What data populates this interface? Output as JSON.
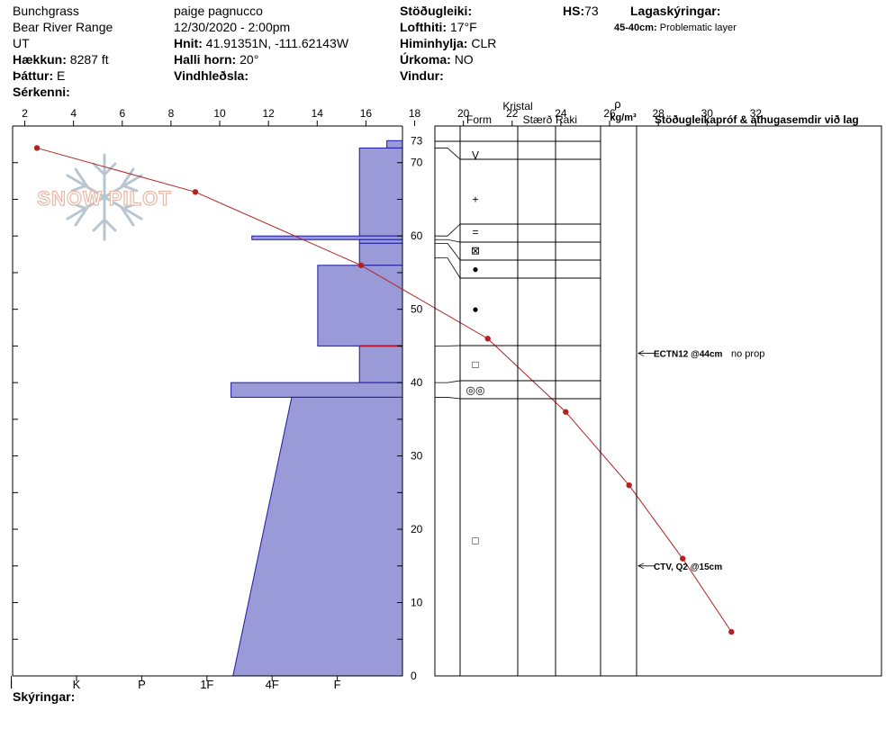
{
  "header": {
    "location": "Bunchgrass",
    "range": "Bear River Range",
    "state": "UT",
    "elevation_label": "Hækkun:",
    "elevation_value": "8287 ft",
    "aspect_label": "Þáttur:",
    "aspect_value": "E",
    "features_label": "Sérkenni:",
    "observer": "paige pagnucco",
    "datetime": "12/30/2020 - 2:00pm",
    "coords_label": "Hnit:",
    "coords_value": "41.91351N, -111.62143W",
    "slope_label": "Halli horn:",
    "slope_value": "20°",
    "wind_loading_label": "Vindhleðsla:",
    "stability_label": "Stöðugleiki:",
    "air_temp_label": "Lofthiti:",
    "air_temp_value": "17°F",
    "sky_label": "Himinhylja:",
    "sky_value": "CLR",
    "precip_label": "Úrkoma:",
    "precip_value": "NO",
    "wind_label": "Vindur:",
    "hs_label": "HS:",
    "hs_value": "73",
    "layer_notes_label": "Lagaskýringar:",
    "layer_note_range": "45-40cm:",
    "layer_note_text": "Problematic layer"
  },
  "watermark": "SNOW PILOT",
  "footer": {
    "notes_label": "Skýringar:"
  },
  "table_headers": {
    "kristal": "Kristal",
    "form": "Form",
    "size": "Stærð",
    "moisture": "Raki",
    "rho": "ρ",
    "density_unit": "kg/m³",
    "tests": "Stöðugleikapróf & athugasemdir við lag"
  },
  "colors": {
    "hardness_fill": "#9a9ad8",
    "hardness_edge": "#1a1aa0",
    "temp_line": "#b22222"
  },
  "chart_data": {
    "type": "snow-profile",
    "depth_range_cm": [
      0,
      75
    ],
    "depth_ticks": [
      0,
      10,
      20,
      30,
      40,
      50,
      60,
      70
    ],
    "hs_cm": 73,
    "temperature_axis_values": [
      2,
      4,
      6,
      8,
      10,
      12,
      14,
      16,
      18,
      20,
      22,
      24,
      26,
      28,
      30,
      32
    ],
    "hardness_scale": [
      "I",
      "K",
      "P",
      "1F",
      "4F",
      "F"
    ],
    "temperature_profile": [
      {
        "depth": 72,
        "temp": 2.5
      },
      {
        "depth": 66,
        "temp": 9.0
      },
      {
        "depth": 56,
        "temp": 15.8
      },
      {
        "depth": 46,
        "temp": 21.0
      },
      {
        "depth": 36,
        "temp": 24.2
      },
      {
        "depth": 26,
        "temp": 26.8
      },
      {
        "depth": 16,
        "temp": 29.0
      },
      {
        "depth": 6,
        "temp": 31.0
      }
    ],
    "hardness_layers": [
      {
        "top": 73,
        "bottom": 72,
        "hardness": 0.24
      },
      {
        "top": 72,
        "bottom": 60,
        "hardness": 0.66
      },
      {
        "top": 60,
        "bottom": 59.5,
        "hardness": 2.31
      },
      {
        "top": 59.5,
        "bottom": 59,
        "hardness": 0.66
      },
      {
        "top": 59,
        "bottom": 56,
        "hardness": 0.66
      },
      {
        "top": 56,
        "bottom": 45,
        "hardness": 1.3
      },
      {
        "top": 45,
        "bottom": 40,
        "hardness": 0.66
      },
      {
        "top": 40,
        "bottom": 38,
        "hardness": 2.63
      },
      {
        "top": 38,
        "bottom": 0,
        "hardness_top": 1.7,
        "hardness_bottom": 2.6
      }
    ],
    "layer_boundaries": [
      73,
      72,
      60,
      59.5,
      59,
      57,
      56,
      45,
      40,
      38,
      0
    ],
    "crystal_forms": [
      {
        "depth": 71,
        "symbol": "V"
      },
      {
        "depth": 65,
        "symbol": "+"
      },
      {
        "depth": 60.5,
        "symbol": "="
      },
      {
        "depth": 58,
        "symbol": "⊠"
      },
      {
        "depth": 55.5,
        "symbol": "●"
      },
      {
        "depth": 50,
        "symbol": "●"
      },
      {
        "depth": 42.5,
        "symbol": "□"
      },
      {
        "depth": 39,
        "symbol": "◎◎"
      },
      {
        "depth": 18.5,
        "symbol": "□"
      }
    ],
    "stability_tests": [
      {
        "depth": 44,
        "label": "ECTN12 @44cm",
        "comment": "no prop"
      },
      {
        "depth": 15,
        "label": "CTV, Q2 @15cm",
        "comment": ""
      }
    ]
  }
}
